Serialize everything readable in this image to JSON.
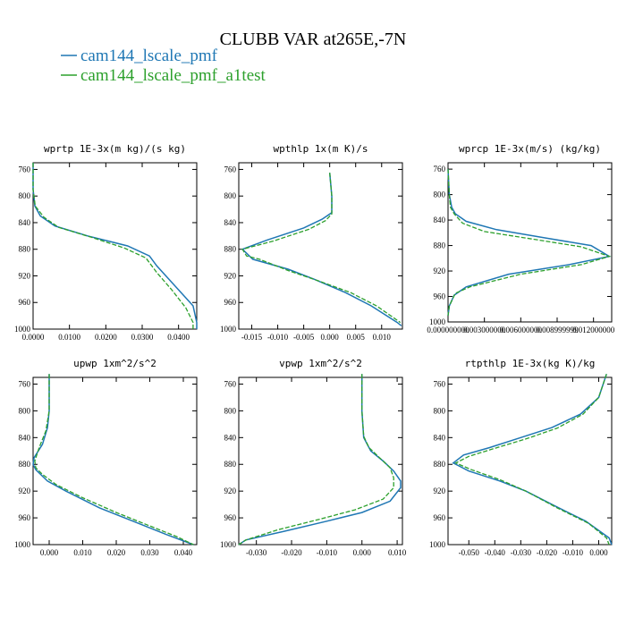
{
  "figure": {
    "title": "CLUBB VAR at265E,-7N",
    "legend_placement": "top-left",
    "colors": {
      "series_1": "#1f77b4",
      "series_2": "#2ca02c"
    }
  },
  "chart_data": [
    {
      "type": "line",
      "title": "wprtp  1E-3x(m kg)/(s kg)",
      "y_axis": "pressure (inverted)",
      "ylim": [
        1000,
        750
      ],
      "yticks": [
        "760",
        "800",
        "840",
        "880",
        "920",
        "960",
        "1000"
      ],
      "xlim": [
        0.0,
        0.045
      ],
      "xticks": [
        0.0,
        0.01,
        0.02,
        0.03,
        0.04
      ],
      "xtick_labels": [
        "0.0000",
        "0.0100",
        "0.0200",
        "0.0300",
        "0.0400"
      ],
      "grid": false,
      "series": [
        {
          "name": "cam144_lscale_pmf",
          "style": "solid",
          "points": [
            [
              0,
              750
            ],
            [
              0,
              790
            ],
            [
              0.0005,
              815
            ],
            [
              0.002,
              830
            ],
            [
              0.006,
              845
            ],
            [
              0.015,
              860
            ],
            [
              0.026,
              875
            ],
            [
              0.032,
              890
            ],
            [
              0.034,
              905
            ],
            [
              0.039,
              935
            ],
            [
              0.044,
              965
            ],
            [
              0.045,
              990
            ],
            [
              0.045,
              1000
            ]
          ]
        },
        {
          "name": "cam144_lscale_pmf_a1test",
          "style": "dashed",
          "points": [
            [
              0,
              750
            ],
            [
              0,
              790
            ],
            [
              0.0006,
              815
            ],
            [
              0.003,
              832
            ],
            [
              0.007,
              847
            ],
            [
              0.016,
              862
            ],
            [
              0.025,
              878
            ],
            [
              0.031,
              893
            ],
            [
              0.034,
              915
            ],
            [
              0.038,
              940
            ],
            [
              0.042,
              968
            ],
            [
              0.044,
              990
            ],
            [
              0.044,
              1000
            ]
          ]
        }
      ]
    },
    {
      "type": "line",
      "title": "wpthlp  1x(m K)/s",
      "y_axis": "pressure (inverted)",
      "ylim": [
        1000,
        750
      ],
      "yticks": [
        "760",
        "800",
        "840",
        "880",
        "920",
        "960",
        "1000"
      ],
      "xlim": [
        -0.0175,
        0.014
      ],
      "xticks": [
        -0.015,
        -0.01,
        -0.005,
        0.0,
        0.005,
        0.01
      ],
      "xtick_labels": [
        "-0.015",
        "-0.010",
        "-0.005",
        "0.000",
        "0.005",
        "0.010"
      ],
      "grid": false,
      "series": [
        {
          "name": "cam144_lscale_pmf",
          "style": "solid",
          "points": [
            [
              0,
              765
            ],
            [
              0.0004,
              800
            ],
            [
              0.0004,
              825
            ],
            [
              -0.0015,
              835
            ],
            [
              -0.005,
              848
            ],
            [
              -0.012,
              866
            ],
            [
              -0.0168,
              880
            ],
            [
              -0.0148,
              895
            ],
            [
              -0.008,
              910
            ],
            [
              -0.003,
              925
            ],
            [
              0.003,
              945
            ],
            [
              0.008,
              965
            ],
            [
              0.013,
              990
            ],
            [
              0.0138,
              995
            ]
          ]
        },
        {
          "name": "cam144_lscale_pmf_a1test",
          "style": "dashed",
          "points": [
            [
              0,
              765
            ],
            [
              0.0004,
              800
            ],
            [
              0.0004,
              827
            ],
            [
              -0.0008,
              837
            ],
            [
              -0.004,
              850
            ],
            [
              -0.011,
              868
            ],
            [
              -0.0168,
              880
            ],
            [
              -0.016,
              890
            ],
            [
              -0.0135,
              895
            ],
            [
              -0.008,
              912
            ],
            [
              -0.002,
              928
            ],
            [
              0.004,
              945
            ],
            [
              0.009,
              965
            ],
            [
              0.0136,
              990
            ]
          ]
        }
      ]
    },
    {
      "type": "line",
      "title": "wprcp  1E-3x(m/s) (kg/kg)",
      "y_axis": "pressure (inverted)",
      "ylim": [
        1000,
        750
      ],
      "yticks": [
        "760",
        "800",
        "840",
        "880",
        "920",
        "960",
        "1000"
      ],
      "xlim": [
        0.0,
        0.0135
      ],
      "xticks": [
        0.0,
        0.003,
        0.006,
        0.009,
        0.012
      ],
      "xtick_labels": [
        "0.000000000",
        "0.003000000",
        "0.006000000",
        "0.008999999",
        "0.012000000"
      ],
      "grid": false,
      "series": [
        {
          "name": "cam144_lscale_pmf",
          "style": "solid",
          "points": [
            [
              0,
              760
            ],
            [
              0.0001,
              800
            ],
            [
              0.0003,
              820
            ],
            [
              0.0006,
              830
            ],
            [
              0.0015,
              842
            ],
            [
              0.004,
              855
            ],
            [
              0.008,
              868
            ],
            [
              0.0118,
              880
            ],
            [
              0.0133,
              897
            ],
            [
              0.01,
              910
            ],
            [
              0.005,
              925
            ],
            [
              0.0015,
              945
            ],
            [
              0.0005,
              958
            ],
            [
              0.0001,
              975
            ],
            [
              0,
              990
            ]
          ]
        },
        {
          "name": "cam144_lscale_pmf_a1test",
          "style": "dashed",
          "points": [
            [
              0,
              760
            ],
            [
              0.0001,
              800
            ],
            [
              0.0002,
              820
            ],
            [
              0.0005,
              830
            ],
            [
              0.0012,
              845
            ],
            [
              0.003,
              858
            ],
            [
              0.007,
              870
            ],
            [
              0.011,
              882
            ],
            [
              0.0133,
              897
            ],
            [
              0.011,
              910
            ],
            [
              0.006,
              925
            ],
            [
              0.0018,
              945
            ],
            [
              0.0006,
              955
            ],
            [
              0.0001,
              975
            ],
            [
              0,
              990
            ]
          ]
        }
      ]
    },
    {
      "type": "line",
      "title": "upwp  1xm^2/s^2",
      "y_axis": "pressure (inverted)",
      "ylim": [
        1000,
        750
      ],
      "yticks": [
        "760",
        "800",
        "840",
        "880",
        "920",
        "960",
        "1000"
      ],
      "xlim": [
        -0.0048,
        0.044
      ],
      "xticks": [
        0.0,
        0.01,
        0.02,
        0.03,
        0.04
      ],
      "xtick_labels": [
        "0.000",
        "0.010",
        "0.020",
        "0.030",
        "0.040"
      ],
      "grid": false,
      "series": [
        {
          "name": "cam144_lscale_pmf",
          "style": "solid",
          "points": [
            [
              0,
              745
            ],
            [
              0,
              800
            ],
            [
              -0.0005,
              825
            ],
            [
              -0.002,
              850
            ],
            [
              -0.0045,
              870
            ],
            [
              -0.0048,
              880
            ],
            [
              -0.004,
              888
            ],
            [
              -0.0005,
              905
            ],
            [
              0.005,
              920
            ],
            [
              0.015,
              945
            ],
            [
              0.025,
              965
            ],
            [
              0.035,
              985
            ],
            [
              0.043,
              1000
            ]
          ]
        },
        {
          "name": "cam144_lscale_pmf_a1test",
          "style": "dashed",
          "points": [
            [
              0,
              745
            ],
            [
              0,
              800
            ],
            [
              -0.001,
              830
            ],
            [
              -0.003,
              855
            ],
            [
              -0.0043,
              875
            ],
            [
              -0.004,
              885
            ],
            [
              -0.002,
              895
            ],
            [
              0.002,
              910
            ],
            [
              0.01,
              930
            ],
            [
              0.02,
              952
            ],
            [
              0.03,
              972
            ],
            [
              0.038,
              988
            ],
            [
              0.043,
              1000
            ]
          ]
        }
      ]
    },
    {
      "type": "line",
      "title": "vpwp  1xm^2/s^2",
      "y_axis": "pressure (inverted)",
      "ylim": [
        1000,
        750
      ],
      "yticks": [
        "760",
        "800",
        "840",
        "880",
        "920",
        "960",
        "1000"
      ],
      "xlim": [
        -0.035,
        0.0115
      ],
      "xticks": [
        -0.03,
        -0.02,
        -0.01,
        0.0,
        0.01
      ],
      "xtick_labels": [
        "-0.030",
        "-0.020",
        "-0.010",
        "0.000",
        "0.010"
      ],
      "grid": false,
      "series": [
        {
          "name": "cam144_lscale_pmf",
          "style": "solid",
          "points": [
            [
              0,
              745
            ],
            [
              0,
              800
            ],
            [
              0.0005,
              840
            ],
            [
              0.0025,
              860
            ],
            [
              0.006,
              875
            ],
            [
              0.009,
              890
            ],
            [
              0.011,
              905
            ],
            [
              0.011,
              915
            ],
            [
              0.008,
              935
            ],
            [
              0,
              952
            ],
            [
              -0.01,
              965
            ],
            [
              -0.022,
              980
            ],
            [
              -0.033,
              993
            ],
            [
              -0.035,
              1000
            ]
          ]
        },
        {
          "name": "cam144_lscale_pmf_a1test",
          "style": "dashed",
          "points": [
            [
              0,
              745
            ],
            [
              0,
              800
            ],
            [
              0.0005,
              838
            ],
            [
              0.002,
              855
            ],
            [
              0.005,
              870
            ],
            [
              0.008,
              885
            ],
            [
              0.009,
              900
            ],
            [
              0.009,
              915
            ],
            [
              0.006,
              932
            ],
            [
              -0.002,
              948
            ],
            [
              -0.012,
              962
            ],
            [
              -0.024,
              978
            ],
            [
              -0.033,
              993
            ],
            [
              -0.035,
              1000
            ]
          ]
        }
      ]
    },
    {
      "type": "line",
      "title": "rtpthlp  1E-3x(kg K)/kg",
      "y_axis": "pressure (inverted)",
      "ylim": [
        1000,
        750
      ],
      "yticks": [
        "760",
        "800",
        "840",
        "880",
        "920",
        "960",
        "1000"
      ],
      "xlim": [
        -0.058,
        0.005
      ],
      "xticks": [
        -0.05,
        -0.04,
        -0.03,
        -0.02,
        -0.01,
        0.0
      ],
      "xtick_labels": [
        "-0.050",
        "-0.040",
        "-0.030",
        "-0.020",
        "-0.010",
        "0.000"
      ],
      "grid": false,
      "series": [
        {
          "name": "cam144_lscale_pmf",
          "style": "solid",
          "points": [
            [
              0.003,
              745
            ],
            [
              0,
              780
            ],
            [
              -0.007,
              805
            ],
            [
              -0.018,
              825
            ],
            [
              -0.03,
              840
            ],
            [
              -0.042,
              855
            ],
            [
              -0.052,
              866
            ],
            [
              -0.056,
              878
            ],
            [
              -0.05,
              890
            ],
            [
              -0.038,
              905
            ],
            [
              -0.028,
              920
            ],
            [
              -0.018,
              940
            ],
            [
              -0.005,
              965
            ],
            [
              0.004,
              990
            ],
            [
              0.005,
              1000
            ]
          ]
        },
        {
          "name": "cam144_lscale_pmf_a1test",
          "style": "dashed",
          "points": [
            [
              0.003,
              745
            ],
            [
              0,
              780
            ],
            [
              -0.006,
              805
            ],
            [
              -0.016,
              826
            ],
            [
              -0.028,
              842
            ],
            [
              -0.04,
              856
            ],
            [
              -0.05,
              868
            ],
            [
              -0.055,
              878
            ],
            [
              -0.049,
              888
            ],
            [
              -0.038,
              903
            ],
            [
              -0.028,
              920
            ],
            [
              -0.016,
              945
            ],
            [
              -0.004,
              968
            ],
            [
              0.003,
              990
            ],
            [
              0.004,
              1000
            ]
          ]
        }
      ]
    }
  ]
}
